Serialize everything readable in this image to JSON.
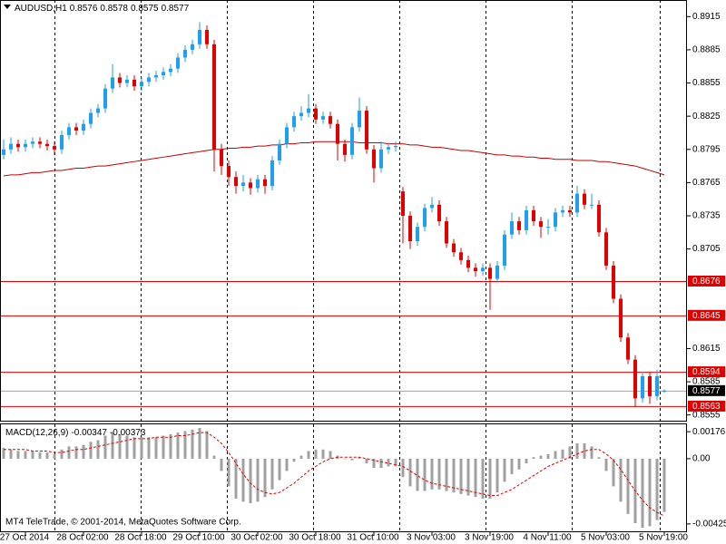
{
  "chart_data": {
    "type": "candlestick",
    "title": "AUDUSD,H1",
    "footer": "MT4 TeleTrade, © 2001-2014, MetaQuotes Software Corp.",
    "categories": [
      null,
      null,
      null,
      "27 Oct 2014",
      null,
      null,
      null,
      null,
      null,
      null,
      null,
      "28 Oct 02:00",
      null,
      null,
      null,
      null,
      null,
      null,
      null,
      "28 Oct 18:00",
      null,
      null,
      null,
      null,
      null,
      null,
      null,
      "29 Oct 10:00",
      null,
      null,
      null,
      null,
      null,
      null,
      null,
      "30 Oct 02:00",
      null,
      null,
      null,
      null,
      null,
      null,
      null,
      "30 Oct 18:00",
      null,
      null,
      null,
      null,
      null,
      null,
      null,
      "31 Oct 10:00",
      null,
      null,
      null,
      null,
      null,
      null,
      null,
      "3 Nov 03:00",
      null,
      null,
      null,
      null,
      null,
      null,
      null,
      "3 Nov 19:00",
      null,
      null,
      null,
      null,
      null,
      null,
      null,
      "4 Nov 11:00",
      null,
      null,
      null,
      null,
      null,
      null,
      null,
      "5 Nov 03:00",
      null,
      null,
      null,
      null,
      null,
      null,
      null,
      "5 Nov 19:00"
    ],
    "open": [
      0.879,
      0.8795,
      0.88,
      0.8797,
      0.88,
      0.8802,
      0.88,
      0.8798,
      0.8795,
      0.8808,
      0.8815,
      0.8812,
      0.8818,
      0.8828,
      0.8832,
      0.885,
      0.886,
      0.8855,
      0.8858,
      0.8852,
      0.8856,
      0.886,
      0.8862,
      0.8865,
      0.8868,
      0.8878,
      0.8885,
      0.889,
      0.8903,
      0.889,
      0.8795,
      0.878,
      0.877,
      0.8762,
      0.8765,
      0.876,
      0.8768,
      0.8762,
      0.8785,
      0.88,
      0.8815,
      0.8825,
      0.8828,
      0.8832,
      0.8822,
      0.8825,
      0.8818,
      0.88,
      0.879,
      0.8815,
      0.883,
      0.8795,
      0.8778,
      0.8795,
      0.8797,
      0.8757,
      0.8735,
      0.8712,
      0.8725,
      0.8742,
      0.8745,
      0.873,
      0.871,
      0.8702,
      0.8695,
      0.8688,
      0.8685,
      0.8688,
      0.8678,
      0.869,
      0.8718,
      0.873,
      0.8722,
      0.874,
      0.873,
      0.8725,
      0.8725,
      0.8738,
      0.874,
      0.8738,
      0.8755,
      0.8745,
      0.8745,
      0.872,
      0.869,
      0.866,
      0.8625,
      0.8605,
      0.857,
      0.859,
      0.8572,
      0.8576
    ],
    "high": [
      0.8804,
      0.8806,
      0.8804,
      0.8804,
      0.8806,
      0.8806,
      0.8804,
      0.8802,
      0.8812,
      0.8819,
      0.8819,
      0.8822,
      0.8832,
      0.8836,
      0.8854,
      0.8872,
      0.8864,
      0.8862,
      0.8862,
      0.886,
      0.8864,
      0.8866,
      0.8869,
      0.8872,
      0.8882,
      0.8889,
      0.8894,
      0.891,
      0.8907,
      0.8894,
      0.88,
      0.8785,
      0.8775,
      0.8772,
      0.8769,
      0.8772,
      0.8772,
      0.8789,
      0.8804,
      0.8819,
      0.8829,
      0.8834,
      0.8845,
      0.8836,
      0.8829,
      0.8829,
      0.8822,
      0.8804,
      0.8819,
      0.8842,
      0.8834,
      0.8799,
      0.8802,
      0.8801,
      0.8802,
      0.8761,
      0.8739,
      0.8729,
      0.8746,
      0.8752,
      0.8749,
      0.8734,
      0.8714,
      0.8706,
      0.8699,
      0.8692,
      0.8692,
      0.8692,
      0.8694,
      0.8722,
      0.8738,
      0.8734,
      0.8744,
      0.8744,
      0.8734,
      0.8732,
      0.8742,
      0.8744,
      0.8744,
      0.8762,
      0.8759,
      0.8755,
      0.8749,
      0.8724,
      0.8694,
      0.8664,
      0.8629,
      0.8609,
      0.8594,
      0.8594,
      0.8596,
      0.8578
    ],
    "low": [
      0.8786,
      0.8791,
      0.8793,
      0.8793,
      0.8796,
      0.8796,
      0.8794,
      0.879,
      0.8791,
      0.8804,
      0.8808,
      0.8808,
      0.8814,
      0.8824,
      0.8828,
      0.8846,
      0.8851,
      0.8851,
      0.8848,
      0.8848,
      0.8852,
      0.8856,
      0.8858,
      0.8861,
      0.8864,
      0.8874,
      0.8881,
      0.8886,
      0.8886,
      0.8775,
      0.8772,
      0.8762,
      0.8755,
      0.8757,
      0.8754,
      0.8756,
      0.8755,
      0.8758,
      0.8781,
      0.8796,
      0.8811,
      0.8821,
      0.8824,
      0.8818,
      0.8818,
      0.8814,
      0.8785,
      0.8784,
      0.8786,
      0.8811,
      0.8791,
      0.8765,
      0.8774,
      0.8791,
      0.8793,
      0.871,
      0.8705,
      0.8708,
      0.8721,
      0.8738,
      0.8726,
      0.8706,
      0.8698,
      0.8691,
      0.8684,
      0.868,
      0.8681,
      0.865,
      0.8674,
      0.8686,
      0.8714,
      0.8718,
      0.8718,
      0.8726,
      0.8715,
      0.8718,
      0.8721,
      0.8734,
      0.8734,
      0.8734,
      0.8741,
      0.8741,
      0.8716,
      0.8686,
      0.8656,
      0.8621,
      0.8601,
      0.8562,
      0.8566,
      0.8565,
      0.8568,
      0.8575
    ],
    "close": [
      0.8795,
      0.88,
      0.8797,
      0.88,
      0.8802,
      0.88,
      0.8798,
      0.8795,
      0.8808,
      0.8815,
      0.8812,
      0.8818,
      0.8828,
      0.8832,
      0.885,
      0.886,
      0.8855,
      0.8858,
      0.8852,
      0.8856,
      0.886,
      0.8862,
      0.8865,
      0.8868,
      0.8878,
      0.8885,
      0.889,
      0.8903,
      0.889,
      0.8795,
      0.878,
      0.877,
      0.8762,
      0.8765,
      0.876,
      0.8768,
      0.8762,
      0.8785,
      0.88,
      0.8815,
      0.8825,
      0.8828,
      0.8832,
      0.8822,
      0.8825,
      0.8818,
      0.88,
      0.879,
      0.8815,
      0.883,
      0.8795,
      0.8778,
      0.8795,
      0.8797,
      0.8798,
      0.8735,
      0.8712,
      0.8725,
      0.8742,
      0.8745,
      0.873,
      0.871,
      0.8702,
      0.8695,
      0.8688,
      0.8685,
      0.8688,
      0.8678,
      0.869,
      0.8718,
      0.873,
      0.8722,
      0.874,
      0.873,
      0.8725,
      0.8725,
      0.8738,
      0.874,
      0.8738,
      0.8755,
      0.8745,
      0.8745,
      0.872,
      0.869,
      0.866,
      0.8625,
      0.8605,
      0.857,
      0.859,
      0.8572,
      0.859,
      0.8577
    ],
    "bull_color": "#1e9ff0",
    "bear_color": "#e00000",
    "ma": {
      "color": "#c80000",
      "values": [
        0.8771,
        0.8772,
        0.8772,
        0.8773,
        0.8774,
        0.8774,
        0.8775,
        0.8776,
        0.8776,
        0.8777,
        0.8778,
        0.8778,
        0.8779,
        0.878,
        0.878,
        0.8781,
        0.8782,
        0.8783,
        0.8784,
        0.8785,
        0.8786,
        0.8787,
        0.8788,
        0.8789,
        0.879,
        0.8791,
        0.8792,
        0.8793,
        0.8794,
        0.8795,
        0.8795,
        0.8796,
        0.8796,
        0.8797,
        0.8797,
        0.8798,
        0.8798,
        0.8799,
        0.8799,
        0.88,
        0.88,
        0.8801,
        0.8801,
        0.8802,
        0.8802,
        0.8802,
        0.8802,
        0.8802,
        0.8802,
        0.8801,
        0.8801,
        0.8801,
        0.8801,
        0.88,
        0.88,
        0.88,
        0.8799,
        0.8799,
        0.8798,
        0.8797,
        0.8797,
        0.8796,
        0.8795,
        0.8794,
        0.8794,
        0.8793,
        0.8792,
        0.8791,
        0.879,
        0.879,
        0.8789,
        0.8789,
        0.8788,
        0.8788,
        0.8787,
        0.8787,
        0.8786,
        0.8786,
        0.8786,
        0.8785,
        0.8785,
        0.8785,
        0.8784,
        0.8784,
        0.8783,
        0.8782,
        0.8781,
        0.878,
        0.8778,
        0.8776,
        0.8774,
        0.8772
      ]
    },
    "levels": {
      "color": "#e00000",
      "values": [
        0.8676,
        0.8645,
        0.8594,
        0.8563
      ]
    },
    "price_line_color": "#a0a0b0",
    "ylim": [
      0.8549,
      0.893
    ],
    "yticks": [
      0.8915,
      0.8885,
      0.8855,
      0.8825,
      0.8795,
      0.8765,
      0.8735,
      0.8705,
      0.8615,
      0.8585,
      0.8555
    ],
    "grid": false,
    "macd": {
      "name": "MACD(12,26,9)",
      "hist_color": "#a0a0a0",
      "signal_color": "#e00000",
      "ylim": [
        -0.00479,
        0.00224
      ],
      "yticks": [
        0.00176,
        {
          "value": 0,
          "label": "0.00"
        },
        -0.00425
      ],
      "hist": [
        0.0007,
        0.0006,
        0.0005,
        0.0005,
        0.0005,
        0.0004,
        0.0004,
        0.0003,
        0.0006,
        0.0008,
        0.0008,
        0.0009,
        0.0011,
        0.0012,
        0.0015,
        0.0017,
        0.0016,
        0.0015,
        0.0014,
        0.0014,
        0.0014,
        0.0014,
        0.0015,
        0.0016,
        0.0017,
        0.0018,
        0.0019,
        0.002,
        0.0018,
        0.0002,
        -0.0008,
        -0.0018,
        -0.0026,
        -0.0028,
        -0.0029,
        -0.0028,
        -0.0025,
        -0.002,
        -0.0014,
        -0.0008,
        -0.0002,
        0.0002,
        0.0005,
        0.0006,
        0.0006,
        0.0005,
        0.0002,
        0.0,
        -0.0001,
        0.0001,
        -0.0003,
        -0.0006,
        -0.0006,
        -0.0005,
        -0.0005,
        -0.0012,
        -0.0018,
        -0.0021,
        -0.0021,
        -0.002,
        -0.002,
        -0.0021,
        -0.0022,
        -0.0023,
        -0.0024,
        -0.0025,
        -0.0026,
        -0.0026,
        -0.0022,
        -0.0015,
        -0.001,
        -0.0007,
        -0.0003,
        0.0001,
        0.0002,
        0.0003,
        0.0005,
        0.0006,
        0.0008,
        0.001,
        0.001,
        0.0008,
        0.0001,
        -0.0008,
        -0.0018,
        -0.0028,
        -0.0036,
        -0.0042,
        -0.0045,
        -0.0044,
        -0.004,
        -0.00347
      ],
      "signal": [
        0.0006,
        0.0006,
        0.0006,
        0.0006,
        0.0005,
        0.0005,
        0.0005,
        0.0004,
        0.0004,
        0.0005,
        0.0006,
        0.0006,
        0.0007,
        0.0008,
        0.0009,
        0.001,
        0.0011,
        0.0012,
        0.0013,
        0.0013,
        0.0013,
        0.0014,
        0.0014,
        0.0014,
        0.0015,
        0.0015,
        0.0016,
        0.0017,
        0.0017,
        0.0014,
        0.001,
        0.0004,
        -0.0003,
        -0.001,
        -0.0016,
        -0.002,
        -0.0022,
        -0.0023,
        -0.0022,
        -0.0019,
        -0.0016,
        -0.0012,
        -0.0008,
        -0.0005,
        -0.0002,
        0.0,
        0.0001,
        0.0001,
        0.0001,
        0.0001,
        0.0,
        -0.0001,
        -0.0002,
        -0.0003,
        -0.0004,
        -0.0005,
        -0.0008,
        -0.0011,
        -0.0014,
        -0.0016,
        -0.0017,
        -0.0018,
        -0.0019,
        -0.002,
        -0.0021,
        -0.0022,
        -0.0023,
        -0.0024,
        -0.0024,
        -0.0022,
        -0.002,
        -0.0017,
        -0.0014,
        -0.0011,
        -0.0008,
        -0.0005,
        -0.0003,
        -0.0001,
        0.0001,
        0.0003,
        0.0005,
        0.0006,
        0.0006,
        0.0003,
        -0.0001,
        -0.0007,
        -0.0014,
        -0.0021,
        -0.0027,
        -0.0032,
        -0.0035,
        -0.00373
      ]
    }
  }
}
